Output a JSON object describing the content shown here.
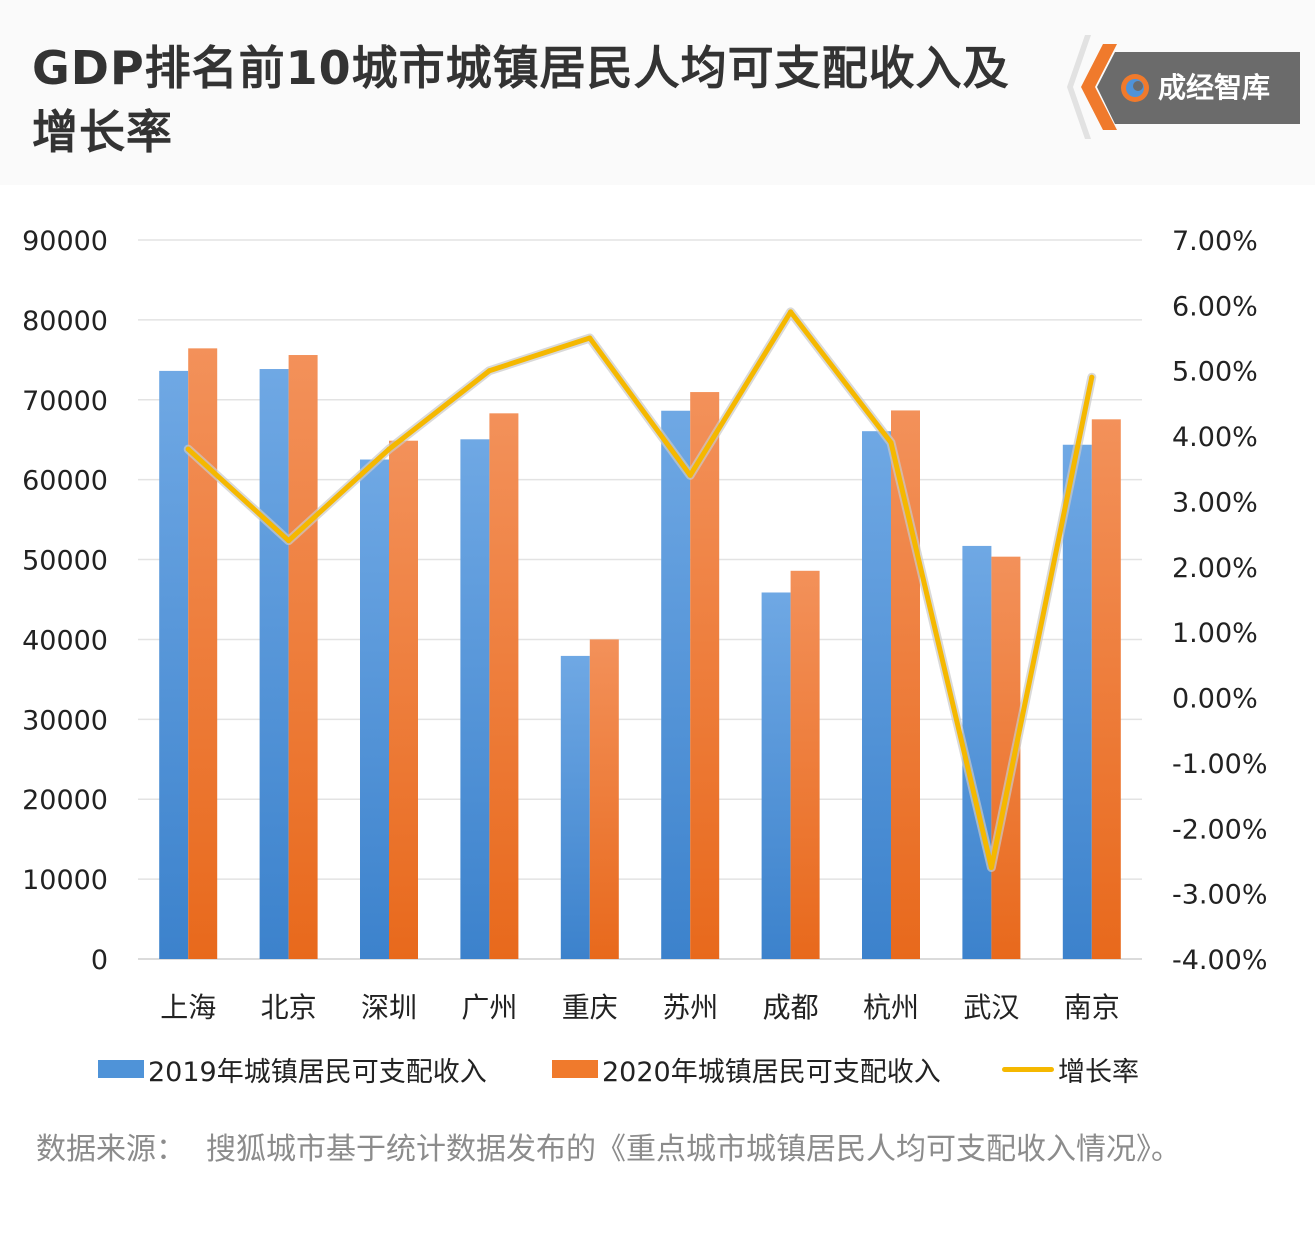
{
  "header": {
    "title": "GDP排名前10城市城镇居民人均可支配收入及增长率",
    "brand": "成经智库"
  },
  "chart_data": {
    "type": "bar",
    "title": "GDP排名前10城市城镇居民人均可支配收入及增长率",
    "categories": [
      "上海",
      "北京",
      "深圳",
      "广州",
      "重庆",
      "苏州",
      "成都",
      "杭州",
      "武汉",
      "南京"
    ],
    "series": [
      {
        "name": "2019年城镇居民可支配收入",
        "type": "bar",
        "axis": "left",
        "values": [
          73615,
          73849,
          62522,
          65052,
          37939,
          68629,
          45878,
          66068,
          51706,
          64372
        ]
      },
      {
        "name": "2020年城镇居民可支配收入",
        "type": "bar",
        "axis": "left",
        "values": [
          76437,
          75602,
          64878,
          68304,
          40006,
          70966,
          48593,
          68666,
          50362,
          67553
        ]
      },
      {
        "name": "增长率",
        "type": "line",
        "axis": "right",
        "values": [
          3.8,
          2.4,
          3.8,
          5.0,
          5.5,
          3.4,
          5.9,
          3.9,
          -2.6,
          4.9
        ]
      }
    ],
    "y_left": {
      "min": 0,
      "max": 90000,
      "ticks": [
        "0",
        "10000",
        "20000",
        "30000",
        "40000",
        "50000",
        "60000",
        "70000",
        "80000",
        "90000"
      ]
    },
    "y_right": {
      "min": -4,
      "max": 7,
      "ticks": [
        "-4.00%",
        "-3.00%",
        "-2.00%",
        "-1.00%",
        "0.00%",
        "1.00%",
        "2.00%",
        "3.00%",
        "4.00%",
        "5.00%",
        "6.00%",
        "7.00%"
      ]
    },
    "grid": true,
    "legend": "bottom",
    "colors": {
      "series_2019": "#4f93d8",
      "series_2020": "#f07a2c",
      "line": "#f5b800",
      "grid": "#e3e3e3"
    }
  },
  "source": {
    "label": "数据来源：",
    "text": "搜狐城市基于统计数据发布的《重点城市城镇居民人均可支配收入情况》。"
  }
}
